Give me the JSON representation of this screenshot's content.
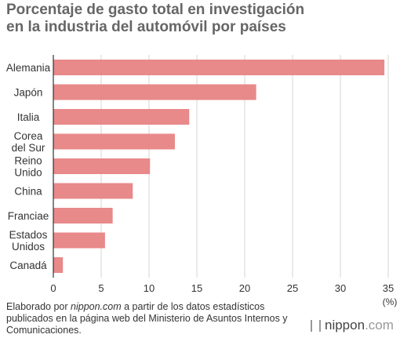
{
  "title_line1": "Porcentaje de gasto total en investigación",
  "title_line2": "en la industria del automóvil por países",
  "footer": {
    "part1": "Elaborado por ",
    "link": "nippon.com",
    "part2": " a partir de los datos estadísticos publicados en la página web del Ministerio de Asuntos Internos y Comunicaciones."
  },
  "logo": {
    "brand": "nippon",
    "tld": ".com"
  },
  "colors": {
    "bar": "#e8898a",
    "axis": "#333333",
    "grid": "#d4d4d4"
  },
  "chart_data": {
    "type": "bar",
    "orientation": "horizontal",
    "categories": [
      [
        "Alemania"
      ],
      [
        "Japón"
      ],
      [
        "Italia"
      ],
      [
        "Corea",
        "del Sur"
      ],
      [
        "Reino",
        "Unido"
      ],
      [
        "China"
      ],
      [
        "Franciae"
      ],
      [
        "Estados",
        "Unidos"
      ],
      [
        "Canadá"
      ]
    ],
    "values": [
      34.6,
      21.2,
      14.2,
      12.7,
      10.1,
      8.3,
      6.2,
      5.4,
      1.0
    ],
    "xlim": [
      0,
      35
    ],
    "xticks": [
      "0",
      "5",
      "10",
      "15",
      "20",
      "25",
      "30",
      "35"
    ],
    "xunit": "(%)",
    "grid": true
  }
}
